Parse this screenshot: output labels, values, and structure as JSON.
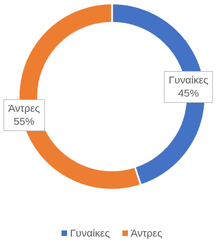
{
  "chart_data": {
    "type": "pie",
    "variant": "donut",
    "categories": [
      "Γυναίκες",
      "Άντρες"
    ],
    "values": [
      45,
      55
    ],
    "unit": "%",
    "colors": [
      "#4472c4",
      "#ed7d31"
    ],
    "data_labels": [
      {
        "category": "Γυναίκες",
        "value": "45%"
      },
      {
        "category": "Άντρες",
        "value": "55%"
      }
    ],
    "legend": {
      "placement": "bottom",
      "entries": [
        "Γυναίκες",
        "Άντρες"
      ]
    }
  }
}
